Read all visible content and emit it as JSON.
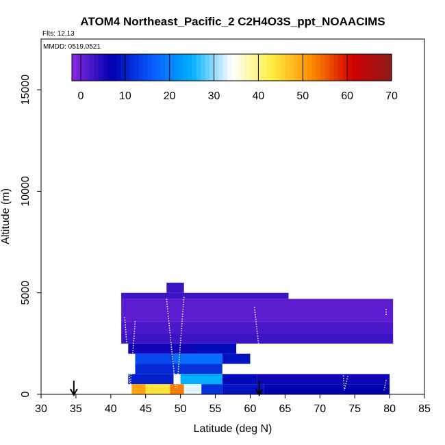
{
  "chart_data": {
    "type": "heatmap",
    "title": "ATOM4 Northeast_Pacific_2 C2H4O3S_ppt_NOAACIMS",
    "subtitle_flights": "Flts: 12,13",
    "subtitle_dates": "MMDD: 0519,0521",
    "xlabel": "Latitude (deg N)",
    "ylabel": "Altitude (m)",
    "xlim": [
      30,
      85
    ],
    "ylim": [
      0,
      17500
    ],
    "xticks": [
      "30",
      "35",
      "40",
      "45",
      "50",
      "55",
      "60",
      "65",
      "70",
      "75",
      "80",
      "85"
    ],
    "yticks": [
      "0",
      "5000",
      "10000",
      "15000"
    ],
    "colorbar": {
      "range": [
        -2,
        70
      ],
      "ticks": [
        "0",
        "10",
        "20",
        "30",
        "40",
        "50",
        "60",
        "70"
      ],
      "colors": [
        "#8a2be2",
        "#0000b0",
        "#0a5aff",
        "#00b0ff",
        "#ffffff",
        "#ffee40",
        "#ff8c00",
        "#d40000",
        "#8b1a1a"
      ]
    },
    "markers_latitude": [
      34.7,
      61.3
    ],
    "cells": [
      {
        "lat": [
          41.5,
          65.5
        ],
        "alt": [
          4700,
          5000
        ],
        "value": 3
      },
      {
        "lat": [
          48,
          50.5
        ],
        "alt": [
          5000,
          5500
        ],
        "value": 3
      },
      {
        "lat": [
          41.5,
          80.5
        ],
        "alt": [
          3600,
          4700
        ],
        "value": 1
      },
      {
        "lat": [
          41.5,
          80.5
        ],
        "alt": [
          3000,
          3600
        ],
        "value": 2
      },
      {
        "lat": [
          41.5,
          80.5
        ],
        "alt": [
          2500,
          3000
        ],
        "value": 3
      },
      {
        "lat": [
          42.5,
          52
        ],
        "alt": [
          2000,
          2500
        ],
        "value": 6
      },
      {
        "lat": [
          52,
          58
        ],
        "alt": [
          2000,
          2500
        ],
        "value": 8
      },
      {
        "lat": [
          43.5,
          49
        ],
        "alt": [
          1500,
          2000
        ],
        "value": 14
      },
      {
        "lat": [
          49,
          56
        ],
        "alt": [
          1500,
          2000
        ],
        "value": 18
      },
      {
        "lat": [
          56,
          60
        ],
        "alt": [
          1500,
          2000
        ],
        "value": 9
      },
      {
        "lat": [
          43.5,
          49
        ],
        "alt": [
          1000,
          1500
        ],
        "value": 11
      },
      {
        "lat": [
          49,
          56
        ],
        "alt": [
          1000,
          1500
        ],
        "value": 12
      },
      {
        "lat": [
          42.5,
          49
        ],
        "alt": [
          500,
          1000
        ],
        "value": 10
      },
      {
        "lat": [
          50,
          56
        ],
        "alt": [
          500,
          1000
        ],
        "value": 25
      },
      {
        "lat": [
          56,
          61
        ],
        "alt": [
          500,
          1000
        ],
        "value": 8
      },
      {
        "lat": [
          61,
          80
        ],
        "alt": [
          500,
          1000
        ],
        "value": 6
      },
      {
        "lat": [
          43,
          45
        ],
        "alt": [
          0,
          500
        ],
        "value": 50
      },
      {
        "lat": [
          45,
          48.5
        ],
        "alt": [
          0,
          500
        ],
        "value": 44
      },
      {
        "lat": [
          48.5,
          50.5
        ],
        "alt": [
          0,
          500
        ],
        "value": 53
      },
      {
        "lat": [
          50.5,
          53
        ],
        "alt": [
          0,
          500
        ],
        "value": 33
      },
      {
        "lat": [
          53,
          56
        ],
        "alt": [
          0,
          500
        ],
        "value": 12
      },
      {
        "lat": [
          56,
          62
        ],
        "alt": [
          0,
          500
        ],
        "value": 9
      },
      {
        "lat": [
          62,
          80
        ],
        "alt": [
          0,
          500
        ],
        "value": 7
      }
    ],
    "flight_tracks": [
      [
        [
          42,
          3800
        ],
        [
          42.8,
          200
        ]
      ],
      [
        [
          43.5,
          3600
        ],
        [
          42.8,
          400
        ]
      ],
      [
        [
          48,
          4700
        ],
        [
          49.3,
          300
        ]
      ],
      [
        [
          50.5,
          4800
        ],
        [
          49.5,
          300
        ]
      ],
      [
        [
          60.6,
          4300
        ],
        [
          61.3,
          2200
        ]
      ],
      [
        [
          73.3,
          1400
        ],
        [
          73.5,
          200
        ]
      ],
      [
        [
          74,
          900
        ],
        [
          73.5,
          200
        ]
      ],
      [
        [
          79.5,
          4200
        ],
        [
          79.5,
          3900
        ]
      ],
      [
        [
          79.5,
          700
        ],
        [
          79.2,
          200
        ]
      ]
    ]
  }
}
